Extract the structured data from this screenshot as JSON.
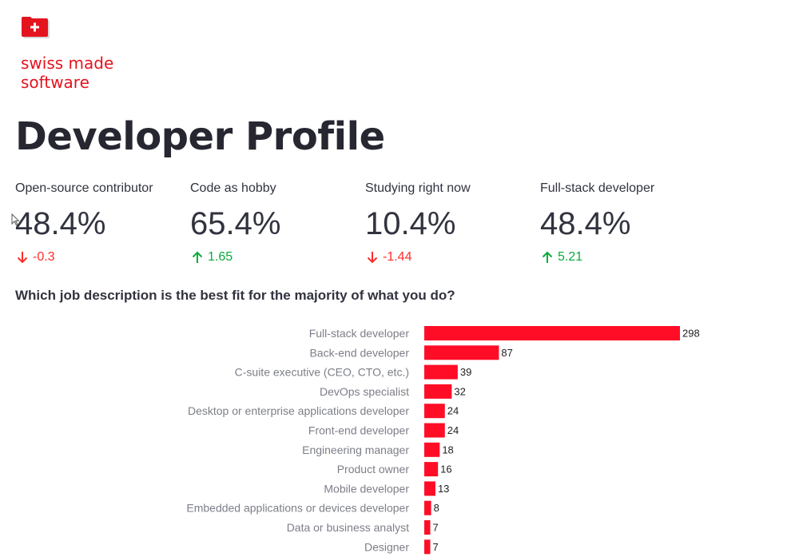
{
  "logo": {
    "line1": "swiss made",
    "line2": "software",
    "icon": "plus-box-icon",
    "color": "#e3141e"
  },
  "page": {
    "title": "Developer Profile"
  },
  "metrics": [
    {
      "label": "Open-source contributor",
      "value": "48.4%",
      "delta": "-0.3",
      "direction": "down"
    },
    {
      "label": "Code as hobby",
      "value": "65.4%",
      "delta": "1.65",
      "direction": "up"
    },
    {
      "label": "Studying right now",
      "value": "10.4%",
      "delta": "-1.44",
      "direction": "down"
    },
    {
      "label": "Full-stack developer",
      "value": "48.4%",
      "delta": "5.21",
      "direction": "up"
    }
  ],
  "colors": {
    "bar": "#ff0d26",
    "delta_down": "#ff2b2b",
    "delta_up": "#09ab3b"
  },
  "question": {
    "text": "Which job description is the best fit for the majority of what you do?"
  },
  "chart_data": {
    "type": "bar",
    "orientation": "horizontal",
    "categories": [
      "Full-stack developer",
      "Back-end developer",
      "C-suite executive (CEO, CTO, etc.)",
      "DevOps specialist",
      "Desktop or enterprise applications developer",
      "Front-end developer",
      "Engineering manager",
      "Product owner",
      "Mobile developer",
      "Embedded applications or devices developer",
      "Data or business analyst",
      "Designer"
    ],
    "values": [
      298,
      87,
      39,
      32,
      24,
      24,
      18,
      16,
      13,
      8,
      7,
      7
    ],
    "data_labels": [
      "298",
      "87",
      "39",
      "32",
      "24",
      "24",
      "18",
      "16",
      "13",
      "8",
      "7",
      "7"
    ],
    "xlim": [
      0,
      298
    ],
    "grid": false,
    "legend": "none"
  }
}
